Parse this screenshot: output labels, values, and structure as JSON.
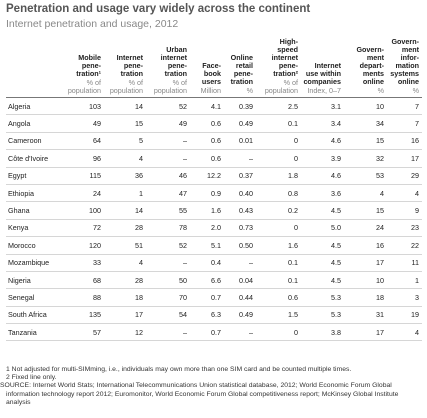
{
  "header": {
    "title": "Penetration and usage vary widely across the continent",
    "subtitle": "Internet penetration and usage, 2012"
  },
  "table": {
    "columns": [
      {
        "label": "Mobile\npene-\ntration¹",
        "unit": "% of\npopulation"
      },
      {
        "label": "Internet\npene-\ntration",
        "unit": "% of\npopulation"
      },
      {
        "label": "Urban\ninternet\npene-\ntration",
        "unit": "% of\npopulation"
      },
      {
        "label": "Face-\nbook\nusers",
        "unit": "Million"
      },
      {
        "label": "Online\nretail\npene-\ntration",
        "unit": "%"
      },
      {
        "label": "High-\nspeed\ninternet\npene-\ntration²",
        "unit": "% of\npopulation"
      },
      {
        "label": "Internet\nuse within\ncompanies",
        "unit": "Index, 0–7"
      },
      {
        "label": "Govern-\nment\ndepart-\nments\nonline",
        "unit": "%"
      },
      {
        "label": "Govern-\nment\ninfor-\nmation\nsystems\nonline",
        "unit": "%"
      }
    ],
    "rows": [
      [
        "Algeria",
        "103",
        "14",
        "52",
        "4.1",
        "0.39",
        "2.5",
        "3.1",
        "10",
        "7"
      ],
      [
        "Angola",
        "49",
        "15",
        "49",
        "0.6",
        "0.49",
        "0.1",
        "3.4",
        "34",
        "7"
      ],
      [
        "Cameroon",
        "64",
        "5",
        "–",
        "0.6",
        "0.01",
        "0",
        "4.6",
        "15",
        "16"
      ],
      [
        "Côte d'Ivoire",
        "96",
        "4",
        "–",
        "0.6",
        "–",
        "0",
        "3.9",
        "32",
        "17"
      ],
      [
        "Egypt",
        "115",
        "36",
        "46",
        "12.2",
        "0.37",
        "1.8",
        "4.6",
        "53",
        "29"
      ],
      [
        "Ethiopia",
        "24",
        "1",
        "47",
        "0.9",
        "0.40",
        "0.8",
        "3.6",
        "4",
        "4"
      ],
      [
        "Ghana",
        "100",
        "14",
        "55",
        "1.6",
        "0.43",
        "0.2",
        "4.5",
        "15",
        "9"
      ],
      [
        "Kenya",
        "72",
        "28",
        "78",
        "2.0",
        "0.73",
        "0",
        "5.0",
        "24",
        "23"
      ],
      [
        "Morocco",
        "120",
        "51",
        "52",
        "5.1",
        "0.50",
        "1.6",
        "4.5",
        "16",
        "22"
      ],
      [
        "Mozambique",
        "33",
        "4",
        "–",
        "0.4",
        "–",
        "0.1",
        "4.5",
        "17",
        "11"
      ],
      [
        "Nigeria",
        "68",
        "28",
        "50",
        "6.6",
        "0.04",
        "0.1",
        "4.5",
        "10",
        "1"
      ],
      [
        "Senegal",
        "88",
        "18",
        "70",
        "0.7",
        "0.44",
        "0.6",
        "5.3",
        "18",
        "3"
      ],
      [
        "South Africa",
        "135",
        "17",
        "54",
        "6.3",
        "0.49",
        "1.5",
        "5.3",
        "31",
        "19"
      ],
      [
        "Tanzania",
        "57",
        "12",
        "–",
        "0.7",
        "–",
        "0",
        "3.8",
        "17",
        "4"
      ]
    ]
  },
  "footnotes": [
    "1 Not adjusted for multi-SIMming, i.e., individuals may own more than one SIM card and be counted multiple times.",
    "2 Fixed line only.",
    "SOURCE: Internet World Stats; International Telecommunications Union statistical database, 2012; World Economic Forum Global information technology report 2012; Euromonitor, World Economic Forum Global competitiveness report; McKinsey Global Institute analysis"
  ]
}
